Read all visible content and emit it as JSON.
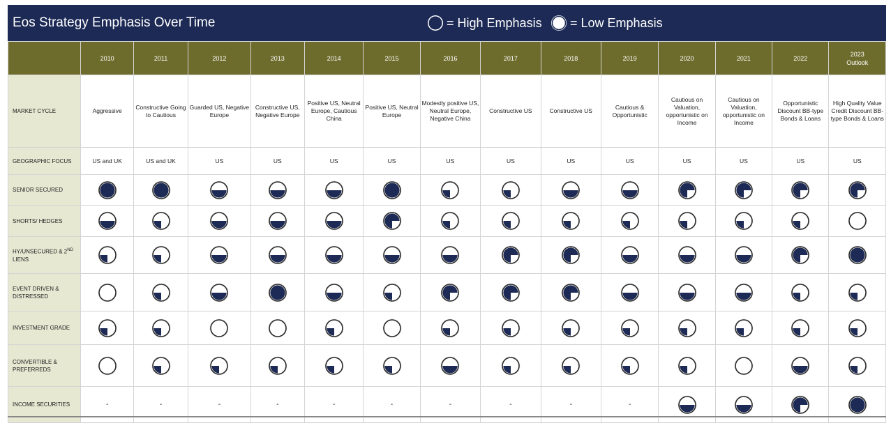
{
  "title": "Eos Strategy Emphasis Over Time",
  "legend": {
    "high_label": "= High Emphasis",
    "low_label": "= Low Emphasis"
  },
  "colors": {
    "header_bg": "#1c2a55",
    "year_bg": "#6e6c2c",
    "label_bg": "#e7e8d2",
    "fill": "#1c2a55"
  },
  "chart_data": {
    "type": "table",
    "title": "Eos Strategy Emphasis Over Time",
    "encoding": "Each emphasis value is the filled fraction of a circle (1 = fully filled, high emphasis; 0 = empty, low emphasis).",
    "years": [
      {
        "year": "2010",
        "note": ""
      },
      {
        "year": "2011",
        "note": ""
      },
      {
        "year": "2012",
        "note": ""
      },
      {
        "year": "2013",
        "note": ""
      },
      {
        "year": "2014",
        "note": ""
      },
      {
        "year": "2015",
        "note": ""
      },
      {
        "year": "2016",
        "note": ""
      },
      {
        "year": "2017",
        "note": ""
      },
      {
        "year": "2018",
        "note": ""
      },
      {
        "year": "2019",
        "note": ""
      },
      {
        "year": "2020",
        "note": ""
      },
      {
        "year": "2021",
        "note": ""
      },
      {
        "year": "2022",
        "note": ""
      },
      {
        "year": "2023",
        "note": "Outlook"
      }
    ],
    "market_cycle": {
      "label": "MARKET CYCLE",
      "values": [
        "Aggressive",
        "Constructive Going to Cautious",
        "Guarded US, Negative Europe",
        "Constructive US, Negative Europe",
        "Positive US, Neutral Europe, Cautious China",
        "Positive US, Neutral Europe",
        "Modestly positive US, Neutral Europe, Negative China",
        "Constructive US",
        "Constructive US",
        "Cautious & Opportunistic",
        "Cautious on Valuation, opportunistic on Income",
        "Cautious on Valuation, opportunistic on Income",
        "Opportunistic Discount BB-type Bonds & Loans",
        "High Quality Value Credit Discount BB-type Bonds & Loans"
      ]
    },
    "geographic_focus": {
      "label": "GEOGRAPHIC FOCUS",
      "values": [
        "US and UK",
        "US and UK",
        "US",
        "US",
        "US",
        "US",
        "US",
        "US",
        "US",
        "US",
        "US",
        "US",
        "US",
        "US"
      ]
    },
    "strategies": [
      {
        "label": "SENIOR SECURED",
        "sup": "",
        "label_tail": "",
        "values": [
          1,
          1,
          0.5,
          0.5,
          0.5,
          1,
          0.25,
          0.25,
          0.5,
          0.5,
          0.75,
          0.75,
          0.75,
          0.75
        ]
      },
      {
        "label": "SHORTS/ HEDGES",
        "sup": "",
        "label_tail": "",
        "values": [
          0.5,
          0.25,
          0.5,
          0.5,
          0.5,
          0.75,
          0.25,
          0.25,
          0.25,
          0.25,
          0.25,
          0.25,
          0.25,
          0
        ]
      },
      {
        "label": "HY/UNSECURED & 2",
        "sup": "ND",
        "label_tail": " LIENS",
        "values": [
          0.25,
          0.25,
          0.5,
          0.5,
          0.5,
          0.5,
          0.5,
          0.75,
          0.75,
          0.5,
          0.5,
          0.5,
          0.75,
          1
        ]
      },
      {
        "label": "EVENT DRIVEN & DISTRESSED",
        "sup": "",
        "label_tail": "",
        "values": [
          0,
          0.25,
          0.5,
          1,
          0.5,
          0.25,
          0.75,
          0.75,
          0.75,
          0.5,
          0.5,
          0.5,
          0.25,
          0.25
        ]
      },
      {
        "label": "INVESTMENT GRADE",
        "sup": "",
        "label_tail": "",
        "values": [
          0.25,
          0.25,
          0,
          0,
          0.25,
          0,
          0.25,
          0.25,
          0.25,
          0.25,
          0.25,
          0.25,
          0.25,
          0.25
        ]
      },
      {
        "label": "CONVERTIBLE & PREFERREDS",
        "sup": "",
        "label_tail": "",
        "values": [
          0,
          0.25,
          0.25,
          0.25,
          0.25,
          0.25,
          0.5,
          0.25,
          0.25,
          0.25,
          0.25,
          0,
          0.5,
          0.25
        ]
      },
      {
        "label": "INCOME SECURITIES",
        "sup": "",
        "label_tail": "",
        "values": [
          null,
          null,
          null,
          null,
          null,
          null,
          null,
          null,
          null,
          null,
          0.5,
          0.5,
          0.75,
          1
        ]
      }
    ]
  }
}
